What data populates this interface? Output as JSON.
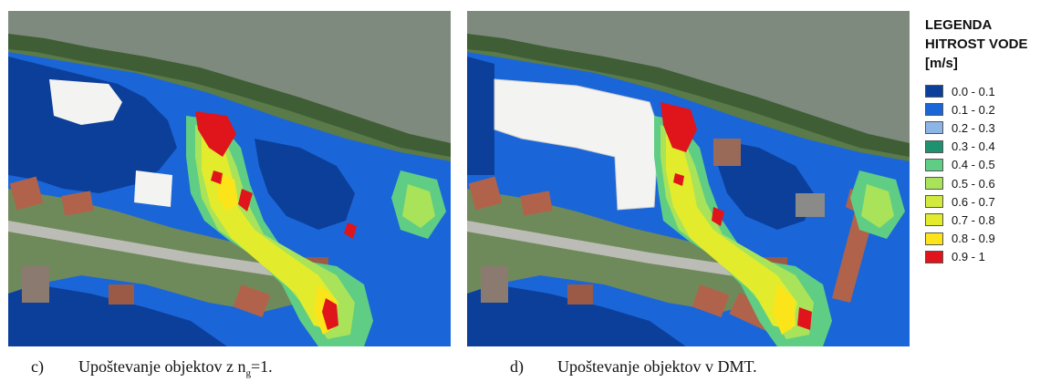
{
  "captions": {
    "left": {
      "letter": "c)",
      "text": "Upoštevanje objektov z n",
      "sub": "g",
      "tail": "=1."
    },
    "right": {
      "letter": "d)",
      "text": "Upoštevanje objektov v DMT."
    }
  },
  "legend": {
    "title_line1": "LEGENDA",
    "title_line2": "HITROST VODE",
    "unit": "[m/s]",
    "items": [
      {
        "label": "0.0 - 0.1",
        "color": "#0c3f9a"
      },
      {
        "label": "0.1 - 0.2",
        "color": "#1a66d8"
      },
      {
        "label": "0.2 - 0.3",
        "color": "#8db4e6"
      },
      {
        "label": "0.3 - 0.4",
        "color": "#1e9270"
      },
      {
        "label": "0.4 - 0.5",
        "color": "#5fce84"
      },
      {
        "label": "0.5 - 0.6",
        "color": "#a9e35a"
      },
      {
        "label": "0.6 - 0.7",
        "color": "#d2ea3d"
      },
      {
        "label": "0.7 - 0.8",
        "color": "#e2ec2c"
      },
      {
        "label": "0.8 - 0.9",
        "color": "#fbe51a"
      },
      {
        "label": "0.9 - 1",
        "color": "#e0141b"
      }
    ]
  },
  "colors": {
    "river": "#7f8a7e",
    "river_bank": "#4f6a45",
    "vegetation": "#3f6b33",
    "roof_tile": "#b0634a",
    "roof_white": "#f3f3f1",
    "road": "#bcbcb6"
  }
}
